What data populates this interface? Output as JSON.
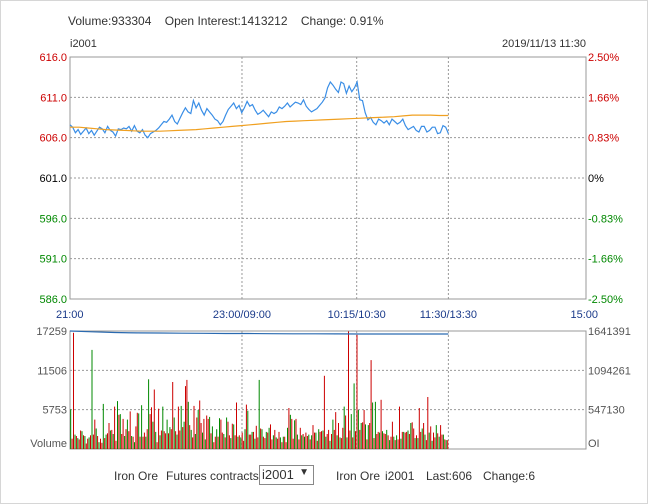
{
  "header": {
    "volume": "Volume:933304",
    "open_interest": "Open Interest:1413212",
    "change": "Change: 0.91%",
    "symbol": "i2001",
    "datetime": "2019/11/13 11:30"
  },
  "price_axis": {
    "left_labels": [
      "616.0",
      "611.0",
      "606.0",
      "601.0",
      "596.0",
      "591.0",
      "586.0"
    ],
    "right_labels": [
      "2.50%",
      "1.66%",
      "0.83%",
      "0%",
      "-0.83%",
      "-1.66%",
      "-2.50%"
    ],
    "time_labels": [
      "21:00",
      "23:00/09:00",
      "10:15/10:30",
      "11:30/13:30",
      "15:00"
    ]
  },
  "volume_axis": {
    "left_labels": [
      "17259",
      "11506",
      "5753",
      "Volume"
    ],
    "right_labels": [
      "1641391",
      "1094261",
      "547130",
      "OI"
    ]
  },
  "colors": {
    "up": "#cc0000",
    "down": "#008800",
    "neutral": "#000000",
    "price_line": "#3a8ee6",
    "avg_line": "#f0a020",
    "grid": "#999999"
  },
  "footer": {
    "product": "Iron Ore",
    "contracts_label": "Futures contracts",
    "selected_contract": "i2001",
    "quote_product": "Iron Ore",
    "quote_symbol": "i2001",
    "last": "Last:606",
    "change": "Change:6"
  },
  "chart_data": [
    {
      "type": "line",
      "title": "",
      "xlabel": "",
      "ylabel": "",
      "ylim": [
        586,
        616
      ],
      "x_ticks": [
        "21:00",
        "23:00/09:00",
        "10:15/10:30",
        "11:30/13:30",
        "15:00"
      ],
      "series": [
        {
          "name": "",
          "values": [
            607.6,
            607.3,
            606.6,
            607.0,
            606.4,
            606.8,
            607.2,
            606.5,
            606.9,
            606.3,
            606.8,
            607.3,
            607.1,
            606.6,
            607.4,
            606.9,
            606.7,
            606.2,
            607.1,
            607.0,
            607.2,
            607.1,
            607.4,
            606.8,
            607.5,
            606.8,
            606.6,
            607.0,
            606.3,
            606.0,
            606.5,
            606.7,
            606.9,
            607.2,
            607.6,
            608.0,
            607.9,
            608.3,
            608.8,
            608.0,
            607.7,
            608.4,
            609.1,
            609.7,
            609.2,
            609.0,
            610.6,
            609.7,
            610.3,
            609.4,
            608.8,
            609.6,
            609.2,
            608.8,
            608.3,
            608.1,
            607.6,
            608.0,
            608.8,
            609.5,
            609.9,
            610.3,
            609.6,
            610.0,
            609.1,
            609.7,
            610.5,
            609.9,
            610.1,
            609.4,
            608.9,
            609.1,
            609.4,
            609.0,
            608.6,
            609.2,
            609.0,
            609.2,
            609.8,
            609.6,
            609.9,
            610.3,
            609.8,
            610.1,
            610.4,
            610.3,
            610.1,
            610.7,
            609.9,
            609.5,
            609.2,
            609.4,
            609.6,
            610.0,
            610.4,
            610.9,
            612.2,
            612.9,
            612.5,
            612.0,
            611.6,
            612.9,
            612.7,
            611.5,
            612.4,
            611.7,
            612.2,
            612.9,
            610.7,
            610.6,
            609.1,
            608.2,
            608.5,
            607.9,
            607.6,
            608.3,
            608.1,
            607.8,
            608.1,
            607.6,
            608.3,
            608.0,
            607.7,
            607.9,
            608.3,
            607.5,
            607.0,
            607.2,
            607.4,
            606.9,
            606.7,
            607.4,
            607.4,
            606.7,
            606.9,
            607.3,
            607.3,
            606.5,
            606.6,
            607.5,
            607.3,
            606.5
          ]
        },
        {
          "name": "",
          "values": [
            607.3,
            607.3,
            607.2,
            607.1,
            607.0,
            606.95,
            606.9,
            606.85,
            606.8,
            606.8,
            606.8,
            606.85,
            606.9,
            606.95,
            607.0,
            607.1,
            607.2,
            607.3,
            607.4,
            607.5,
            607.6,
            607.7,
            607.8,
            607.9,
            608.0,
            608.05,
            608.1,
            608.15,
            608.2,
            608.25,
            608.3,
            608.35,
            608.4,
            608.45,
            608.5,
            608.55,
            608.6,
            608.7,
            608.8,
            608.8,
            608.8,
            608.75,
            608.75
          ]
        }
      ]
    },
    {
      "type": "bar",
      "title": "",
      "ylim": [
        0,
        17259
      ],
      "y2lim": [
        0,
        1641391
      ],
      "values": [
        5800,
        1500,
        17000,
        2100,
        1900,
        1600,
        1400,
        2700,
        2600,
        2000,
        1900,
        800,
        1500,
        1700,
        2000,
        14500,
        2100,
        4300,
        3000,
        1900,
        1000,
        1500,
        900,
        6600,
        1600,
        2100,
        2300,
        3800,
        2700,
        2800,
        2200,
        6200,
        1200,
        7000,
        5000,
        5100,
        2200,
        4400,
        1900,
        2900,
        4300,
        2600,
        5500,
        1900,
        1800,
        1000,
        3300,
        5300,
        5200,
        1800,
        6400,
        1800,
        2400,
        1800,
        2900,
        10200,
        5100,
        6100,
        4000,
        8700,
        2500,
        1000,
        5900,
        2000,
        2700,
        6200,
        2600,
        2300,
        4300,
        2300,
        3200,
        2900,
        9800,
        4600,
        2600,
        2100,
        6200,
        2700,
        6300,
        3200,
        4000,
        9200,
        10100,
        6900,
        3500,
        2800,
        1700,
        6300,
        2200,
        4600,
        5700,
        7100,
        3800,
        2400,
        4400,
        1400,
        4900,
        4400,
        4700,
        2300,
        3300,
        1000,
        1800,
        2900,
        1800,
        4500,
        4300,
        2400,
        2200,
        1700,
        4600,
        4000,
        2000,
        1600,
        3700,
        3600,
        2000,
        6800,
        1800,
        2000,
        1700,
        2400,
        1200,
        2900,
        6500,
        5600,
        2100,
        2100,
        2500,
        2500,
        1500,
        3400,
        1700,
        10100,
        3000,
        2900,
        1800,
        1600,
        2500,
        2400,
        3100,
        3600,
        1400,
        2000,
        2800,
        1700,
        1500,
        2500,
        1700,
        1000,
        1800,
        1800,
        1000,
        3100,
        6000,
        5000,
        4400,
        1500,
        4200,
        4400,
        2100,
        1400,
        3100,
        2000,
        2200,
        1800,
        2400,
        1900,
        2100,
        1400,
        2000,
        3500,
        2400,
        2400,
        1200,
        2900,
        2500,
        2600,
        2700,
        10700,
        1800,
        2200,
        2800,
        1200,
        2200,
        4300,
        2800,
        5400,
        2000,
        3800,
        1700,
        1600,
        3100,
        6200,
        4900,
        1700,
        17200,
        2700,
        5100,
        1700,
        9600,
        2600,
        16700,
        5700,
        2800,
        3800,
        3900,
        5700,
        3600,
        1400,
        3500,
        3800,
        13000,
        6800,
        1600,
        6900,
        2200,
        2500,
        2400,
        7200,
        2600,
        2300,
        2200,
        2800,
        2000,
        1300,
        1800,
        4000,
        1800,
        1300,
        2000,
        1400,
        6200,
        1500,
        2500,
        2500,
        2400,
        2500,
        2700,
        2200,
        3800,
        3900,
        3000,
        1600,
        2000,
        1600,
        6000,
        2500,
        3000,
        3800,
        2100,
        1300,
        7600,
        2400,
        3300,
        1200,
        2400,
        1700,
        3500,
        2300,
        1800,
        3500,
        2100,
        2100,
        1400,
        1300,
        1300
      ],
      "open_interest": [
        1641391,
        1630000,
        1620000,
        1615000,
        1613000,
        1611000,
        1609000,
        1607000,
        1606000,
        1604000,
        1603000,
        1602000,
        1601000,
        1600000,
        1600000,
        1600000,
        1599000,
        1599000
      ]
    }
  ]
}
